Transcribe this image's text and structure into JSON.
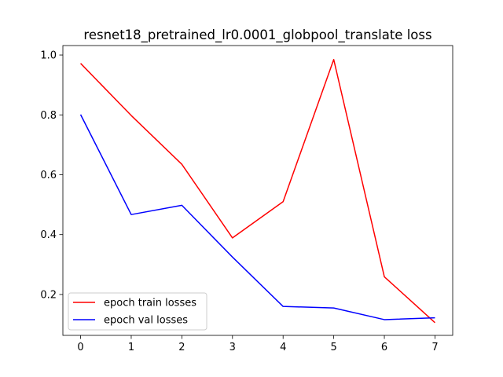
{
  "chart_data": {
    "type": "line",
    "title": "resnet18_pretrained_lr0.0001_globpool_translate loss",
    "xlabel": "",
    "ylabel": "",
    "x": [
      0,
      1,
      2,
      3,
      4,
      5,
      6,
      7
    ],
    "xlim": [
      -0.35,
      7.35
    ],
    "ylim": [
      0.0634,
      1.0316
    ],
    "x_ticks": [
      0,
      1,
      2,
      3,
      4,
      5,
      6,
      7
    ],
    "y_ticks": [
      0.2,
      0.4,
      0.6,
      0.8,
      1.0
    ],
    "y_tick_labels": [
      "0.2",
      "0.4",
      "0.6",
      "0.8",
      "1.0"
    ],
    "grid": false,
    "legend_position": "lower-left",
    "series": [
      {
        "name": "epoch train losses",
        "color": "#ff0000",
        "values": [
          0.972,
          0.798,
          0.635,
          0.389,
          0.51,
          0.985,
          0.259,
          0.106
        ]
      },
      {
        "name": "epoch val losses",
        "color": "#0000ff",
        "values": [
          0.801,
          0.467,
          0.498,
          0.325,
          0.16,
          0.155,
          0.116,
          0.122
        ]
      }
    ]
  }
}
